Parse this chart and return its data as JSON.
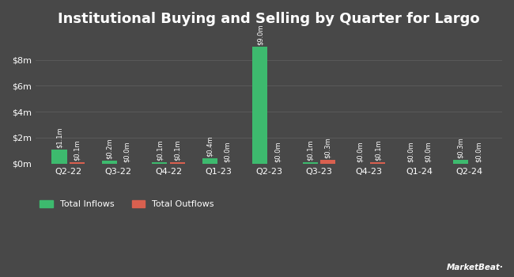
{
  "title": "Institutional Buying and Selling by Quarter for Largo",
  "quarters": [
    "Q2-22",
    "Q3-22",
    "Q4-22",
    "Q1-23",
    "Q2-23",
    "Q3-23",
    "Q4-23",
    "Q1-24",
    "Q2-24"
  ],
  "inflows": [
    1.1,
    0.2,
    0.1,
    0.4,
    9.0,
    0.1,
    0.0,
    0.0,
    0.3
  ],
  "outflows": [
    0.1,
    0.0,
    0.1,
    0.0,
    0.0,
    0.3,
    0.1,
    0.0,
    0.0
  ],
  "inflow_labels": [
    "$1.1m",
    "$0.2m",
    "$0.1m",
    "$0.4m",
    "$9.0m",
    "$0.1m",
    "$0.0m",
    "$0.0m",
    "$0.3m"
  ],
  "outflow_labels": [
    "$0.1m",
    "$0.0m",
    "$0.1m",
    "$0.0m",
    "$0.0m",
    "$0.3m",
    "$0.1m",
    "$0.0m",
    "$0.0m"
  ],
  "inflow_color": "#3dba6e",
  "outflow_color": "#d9604f",
  "background_color": "#484848",
  "axes_bg_color": "#484848",
  "text_color": "#ffffff",
  "grid_color": "#5a5a5a",
  "title_fontsize": 13,
  "tick_fontsize": 8,
  "label_fontsize": 6,
  "ylim": [
    0,
    10
  ],
  "yticks": [
    0,
    2,
    4,
    6,
    8
  ],
  "ytick_labels": [
    "$0m",
    "$2m",
    "$4m",
    "$6m",
    "$8m"
  ],
  "bar_width": 0.3,
  "bar_spacing": 0.05,
  "legend_inflow": "Total Inflows",
  "legend_outflow": "Total Outflows"
}
